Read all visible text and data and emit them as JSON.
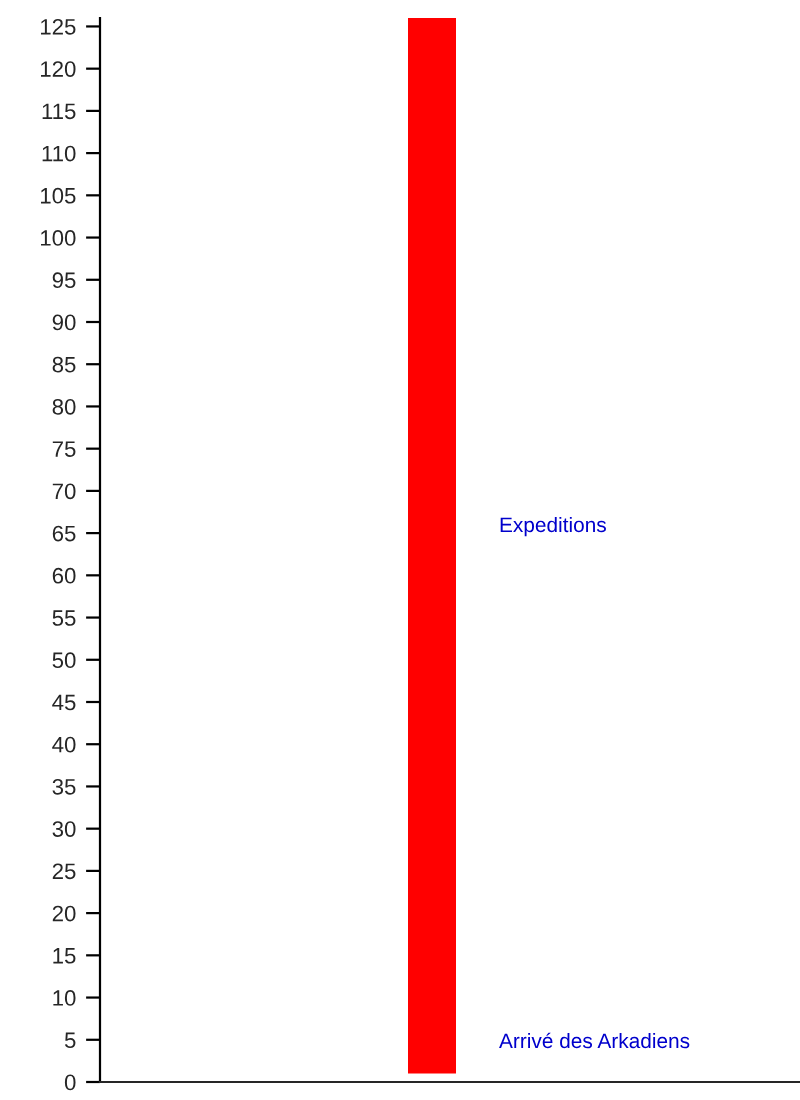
{
  "chart_data": {
    "type": "bar",
    "categories": [
      null
    ],
    "base": [
      1
    ],
    "values": [
      125
    ],
    "colors": [
      "#ff0000"
    ],
    "ylim": [
      0,
      126
    ],
    "yticks": [
      0,
      5,
      10,
      15,
      20,
      25,
      30,
      35,
      40,
      45,
      50,
      55,
      60,
      65,
      70,
      75,
      80,
      85,
      90,
      95,
      100,
      105,
      110,
      115,
      120,
      125
    ],
    "grid": false,
    "legend": false,
    "tick_labels": "y",
    "annotations": [
      "Expeditions",
      "Arrivé des Arkadiens"
    ]
  }
}
